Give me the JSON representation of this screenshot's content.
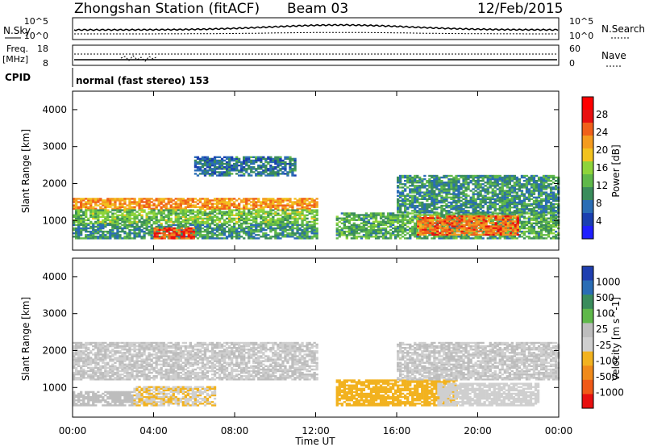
{
  "header": {
    "station": "Zhongshan Station (fitACF)",
    "beam": "Beam 03",
    "date": "12/Feb/2015"
  },
  "top_panels": {
    "nsky_label": "N.Sky",
    "nsky_ticks": [
      "10^5",
      "10^0"
    ],
    "nsearch_label": "N.Search",
    "nsearch_ticks": [
      "10^5",
      "10^0"
    ],
    "freq_label": "Freq.",
    "freq_unit": "[MHz]",
    "freq_ticks": [
      "18",
      "8"
    ],
    "nave_label": "Nave",
    "nave_ticks": [
      "60",
      "0"
    ],
    "cpid_label": "CPID",
    "cpid_value": "normal (fast stereo) 153"
  },
  "colors": {
    "power_scale": [
      "#1f1fff",
      "#1a3fb0",
      "#2a6db5",
      "#3a8c5c",
      "#5fb84a",
      "#8ed43a",
      "#f2c21f",
      "#f49b1f",
      "#f0601a",
      "#e81010",
      "#ff0000"
    ],
    "velocity_scale": [
      "#1f3fb0",
      "#2a6db5",
      "#3a8c5c",
      "#5fb84a",
      "#bdbdbd",
      "#cfcfcf",
      "#f2b21f",
      "#f08a1a",
      "#f05a18",
      "#e81010"
    ]
  },
  "chart_data": [
    {
      "type": "heatmap",
      "name": "power-panel",
      "ylabel": "Slant Range [km]",
      "yticks": [
        "4000",
        "3000",
        "2000",
        "1000"
      ],
      "ylim": [
        200,
        4500
      ],
      "colorbar_label": "Power [dB]",
      "colorbar_ticks": [
        "28",
        "24",
        "20",
        "16",
        "12",
        "8",
        "4"
      ],
      "zlim": [
        0,
        32
      ],
      "echo_regions": [
        {
          "t": [
            0,
            12
          ],
          "range": [
            1300,
            1600
          ],
          "value": 22
        },
        {
          "t": [
            0,
            12
          ],
          "range": [
            900,
            1300
          ],
          "value": 14
        },
        {
          "t": [
            0,
            12
          ],
          "range": [
            500,
            900
          ],
          "value": 10
        },
        {
          "t": [
            4,
            6
          ],
          "range": [
            500,
            800
          ],
          "value": 26
        },
        {
          "t": [
            6,
            11
          ],
          "range": [
            2200,
            2700
          ],
          "value": 8
        },
        {
          "t": [
            13,
            24
          ],
          "range": [
            500,
            1200
          ],
          "value": 12
        },
        {
          "t": [
            17,
            22
          ],
          "range": [
            600,
            1100
          ],
          "value": 24
        },
        {
          "t": [
            16,
            24
          ],
          "range": [
            1200,
            2200
          ],
          "value": 10
        }
      ]
    },
    {
      "type": "heatmap",
      "name": "velocity-panel",
      "ylabel": "Slant Range [km]",
      "yticks": [
        "4000",
        "3000",
        "2000",
        "1000"
      ],
      "ylim": [
        200,
        4500
      ],
      "colorbar_label": "Velocity [m s^-1]",
      "colorbar_ticks": [
        "1000",
        "500",
        "100",
        "25",
        "-25",
        "-100",
        "-500",
        "-1000"
      ],
      "zlim": [
        -1000,
        1000
      ],
      "echo_regions": [
        {
          "t": [
            0,
            12
          ],
          "range": [
            1200,
            2200
          ],
          "value": 0
        },
        {
          "t": [
            0,
            3
          ],
          "range": [
            500,
            900
          ],
          "value": 100
        },
        {
          "t": [
            3,
            7
          ],
          "range": [
            500,
            1000
          ],
          "value": -200
        },
        {
          "t": [
            13,
            19
          ],
          "range": [
            500,
            1200
          ],
          "value": -300
        },
        {
          "t": [
            18,
            23
          ],
          "range": [
            500,
            1100
          ],
          "value": -100
        },
        {
          "t": [
            16,
            24
          ],
          "range": [
            1200,
            2200
          ],
          "value": 0
        }
      ]
    }
  ],
  "xaxis": {
    "label": "Time UT",
    "ticks": [
      "00:00",
      "04:00",
      "08:00",
      "12:00",
      "16:00",
      "20:00",
      "00:00"
    ],
    "xlim": [
      0,
      24
    ]
  }
}
